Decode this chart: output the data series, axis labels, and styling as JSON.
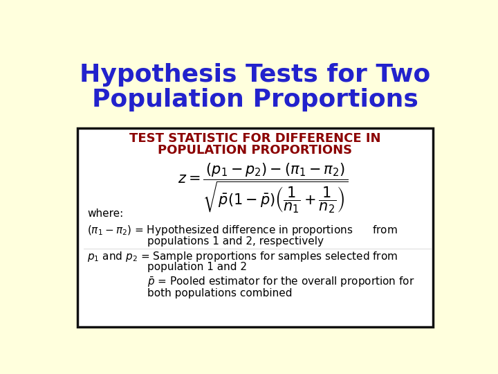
{
  "title_line1": "Hypothesis Tests for Two",
  "title_line2": "Population Proportions",
  "title_color": "#2222cc",
  "title_fontsize": 26,
  "background_color": "#ffffdd",
  "background_box": "#ffffff",
  "box_border_color": "#111111",
  "subtitle_line1": "TEST STATISTIC FOR DIFFERENCE IN",
  "subtitle_line2": "POPULATION PROPORTIONS",
  "subtitle_color": "#8b0000",
  "subtitle_fontsize": 13,
  "formula_fontsize": 15,
  "formula_color": "#000000",
  "body_fontsize": 11,
  "body_color": "#000000"
}
